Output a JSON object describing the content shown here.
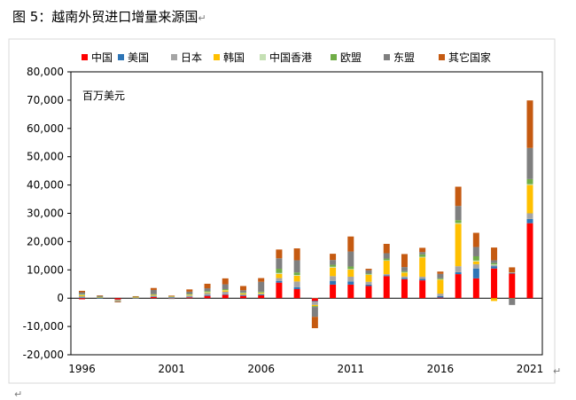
{
  "title": "图 5：越南外贸进口增量来源国",
  "return_mark": "↵",
  "chart_data": {
    "type": "bar",
    "stacked": true,
    "unit": "百万美元",
    "ylim": [
      -20000,
      80000
    ],
    "yticks": [
      -20000,
      -10000,
      0,
      10000,
      20000,
      30000,
      40000,
      50000,
      60000,
      70000,
      80000
    ],
    "ytick_labels": [
      "-20,000",
      "-10,000",
      "0",
      "10,000",
      "20,000",
      "30,000",
      "40,000",
      "50,000",
      "60,000",
      "70,000",
      "80,000"
    ],
    "categories": [
      1996,
      1997,
      1998,
      1999,
      2000,
      2001,
      2002,
      2003,
      2004,
      2005,
      2006,
      2007,
      2008,
      2009,
      2010,
      2011,
      2012,
      2013,
      2014,
      2015,
      2016,
      2017,
      2018,
      2019,
      2020,
      2021
    ],
    "xtick_labels": [
      "1996",
      "2001",
      "2006",
      "2011",
      "2016",
      "2021"
    ],
    "legend_position": "top",
    "series": [
      {
        "name": "中国",
        "color": "#ff0000",
        "values": [
          -400,
          0,
          -500,
          0,
          500,
          100,
          300,
          800,
          1200,
          800,
          1000,
          5500,
          3200,
          -1000,
          4800,
          4800,
          4300,
          7800,
          6700,
          6300,
          200,
          8500,
          7000,
          10500,
          8700,
          26500
        ]
      },
      {
        "name": "美国",
        "color": "#2e75b6",
        "values": [
          200,
          100,
          -100,
          100,
          100,
          100,
          200,
          300,
          200,
          200,
          300,
          600,
          700,
          -200,
          1300,
          1100,
          500,
          300,
          400,
          500,
          500,
          700,
          3500,
          800,
          300,
          1500
        ]
      },
      {
        "name": "日本",
        "color": "#a5a5a5",
        "values": [
          500,
          200,
          -200,
          100,
          300,
          300,
          400,
          700,
          900,
          300,
          200,
          1000,
          2000,
          -1200,
          1700,
          1700,
          1000,
          400,
          600,
          800,
          900,
          2100,
          1500,
          400,
          -100,
          2000
        ]
      },
      {
        "name": "韩国",
        "color": "#ffc000",
        "values": [
          400,
          100,
          -100,
          200,
          300,
          200,
          300,
          300,
          500,
          400,
          400,
          1500,
          2000,
          -400,
          3000,
          2500,
          2500,
          4800,
          1300,
          6800,
          5000,
          15000,
          1000,
          -1000,
          0,
          10000
        ]
      },
      {
        "name": "中国香港",
        "color": "#c5e0b4",
        "values": [
          100,
          0,
          -100,
          0,
          100,
          0,
          100,
          100,
          100,
          100,
          100,
          300,
          300,
          200,
          300,
          200,
          100,
          100,
          200,
          200,
          100,
          300,
          300,
          200,
          100,
          300
        ]
      },
      {
        "name": "欧盟",
        "color": "#70ad47",
        "values": [
          200,
          100,
          0,
          100,
          100,
          100,
          200,
          300,
          300,
          200,
          300,
          1500,
          900,
          -300,
          700,
          900,
          300,
          600,
          300,
          900,
          300,
          1000,
          1500,
          500,
          -100,
          1800
        ]
      },
      {
        "name": "东盟",
        "color": "#7f7f7f",
        "values": [
          700,
          300,
          -300,
          -100,
          1500,
          -300,
          800,
          1000,
          1700,
          800,
          3500,
          3700,
          4300,
          -3500,
          1700,
          5300,
          1200,
          1900,
          1500,
          800,
          1600,
          5000,
          3300,
          1000,
          -2200,
          11000
        ]
      },
      {
        "name": "其它国家",
        "color": "#c55a11",
        "values": [
          500,
          200,
          -100,
          200,
          700,
          100,
          800,
          1600,
          2100,
          1500,
          1300,
          3100,
          4200,
          -4000,
          2200,
          5300,
          500,
          3300,
          4600,
          1500,
          800,
          6800,
          5000,
          4500,
          1800,
          16800
        ]
      }
    ]
  }
}
